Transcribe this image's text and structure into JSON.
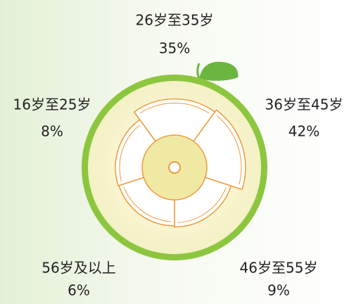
{
  "chart_data": {
    "type": "rose",
    "categories": [
      "26岁至35岁",
      "36岁至45岁",
      "46岁至55岁",
      "56岁及以上",
      "16岁至25岁"
    ],
    "values": [
      35,
      42,
      9,
      6,
      8
    ],
    "value_labels": [
      "35%",
      "42%",
      "9%",
      "6%",
      "8%"
    ],
    "color": "#ef9a3c"
  }
}
